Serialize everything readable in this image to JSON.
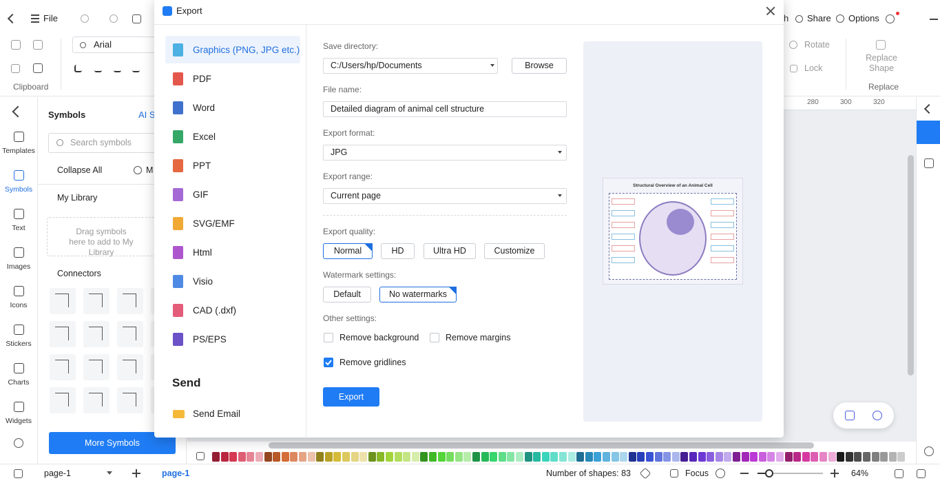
{
  "app": {
    "menu_file": "File",
    "share_partial": "h",
    "share": "Share",
    "options": "Options",
    "font": "Arial",
    "clipboard": "Clipboard",
    "rotate": "Rotate",
    "lock": "Lock",
    "replace_shape": "Replace Shape",
    "replace": "Replace",
    "sidebar": [
      "Templates",
      "Symbols",
      "Text",
      "Images",
      "Icons",
      "Stickers",
      "Charts",
      "Widgets"
    ],
    "sidebar_active": 1,
    "symbols": {
      "title": "Symbols",
      "ai": "AI Sy",
      "search": "Search symbols",
      "collapse": "Collapse All",
      "more_partial": "M",
      "my_library": "My Library",
      "drag_hint": "Drag symbols here to add to My Library",
      "connectors": "Connectors",
      "more_symbols": "More Symbols"
    },
    "ruler": [
      280,
      300,
      320
    ],
    "status": {
      "page_tab": "page-1",
      "page_active": "page-1",
      "shapes": "Number of shapes: 83",
      "focus": "Focus",
      "zoom": "64%"
    }
  },
  "dialog": {
    "title": "Export",
    "formats": [
      "Graphics (PNG, JPG etc.)",
      "PDF",
      "Word",
      "Excel",
      "PPT",
      "GIF",
      "SVG/EMF",
      "Html",
      "Visio",
      "CAD (.dxf)",
      "PS/EPS"
    ],
    "selected_format": 0,
    "send_heading": "Send",
    "send_email": "Send Email",
    "save_directory": {
      "label": "Save directory:",
      "value": "C:/Users/hp/Documents",
      "browse": "Browse"
    },
    "file_name": {
      "label": "File name:",
      "value": "Detailed diagram of animal cell structure"
    },
    "export_format": {
      "label": "Export format:",
      "value": "JPG"
    },
    "export_range": {
      "label": "Export range:",
      "value": "Current page"
    },
    "export_quality": {
      "label": "Export quality:",
      "options": [
        "Normal",
        "HD",
        "Ultra HD",
        "Customize"
      ],
      "selected": 0
    },
    "watermark": {
      "label": "Watermark settings:",
      "options": [
        "Default",
        "No watermarks"
      ],
      "selected": 1
    },
    "other": {
      "label": "Other settings:",
      "options": [
        {
          "label": "Remove background",
          "checked": false
        },
        {
          "label": "Remove margins",
          "checked": false
        },
        {
          "label": "Remove gridlines",
          "checked": true
        }
      ]
    },
    "export_button": "Export",
    "preview_title": "Structural Overview of an Animal Cell"
  }
}
